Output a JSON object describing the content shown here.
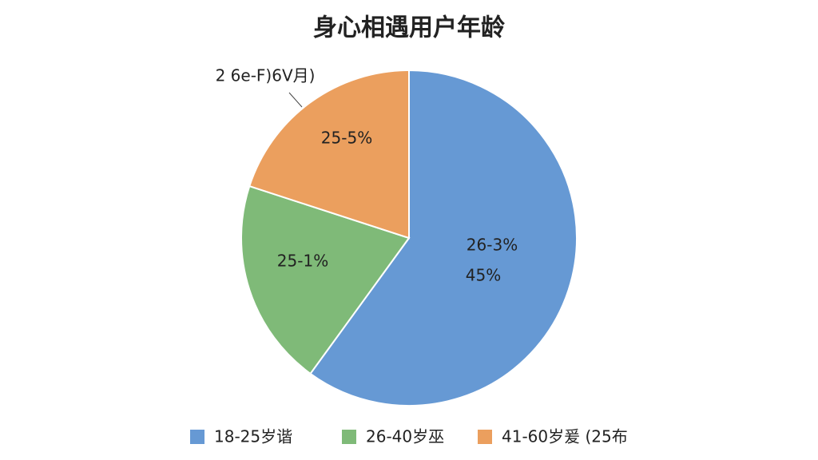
{
  "chart_data": {
    "type": "pie",
    "title": "身心相遇用户年龄",
    "categories": [
      "18-25岁谐",
      "26-40岁巫",
      "41-60岁爰 (25布"
    ],
    "values": [
      60,
      20,
      20
    ],
    "colors": [
      "#6699d4",
      "#7fba78",
      "#eb9f5e"
    ],
    "annotations": [
      "2 6e-F)6V月)",
      "25-5%",
      "25-1%",
      "26-3%",
      "45%"
    ]
  }
}
